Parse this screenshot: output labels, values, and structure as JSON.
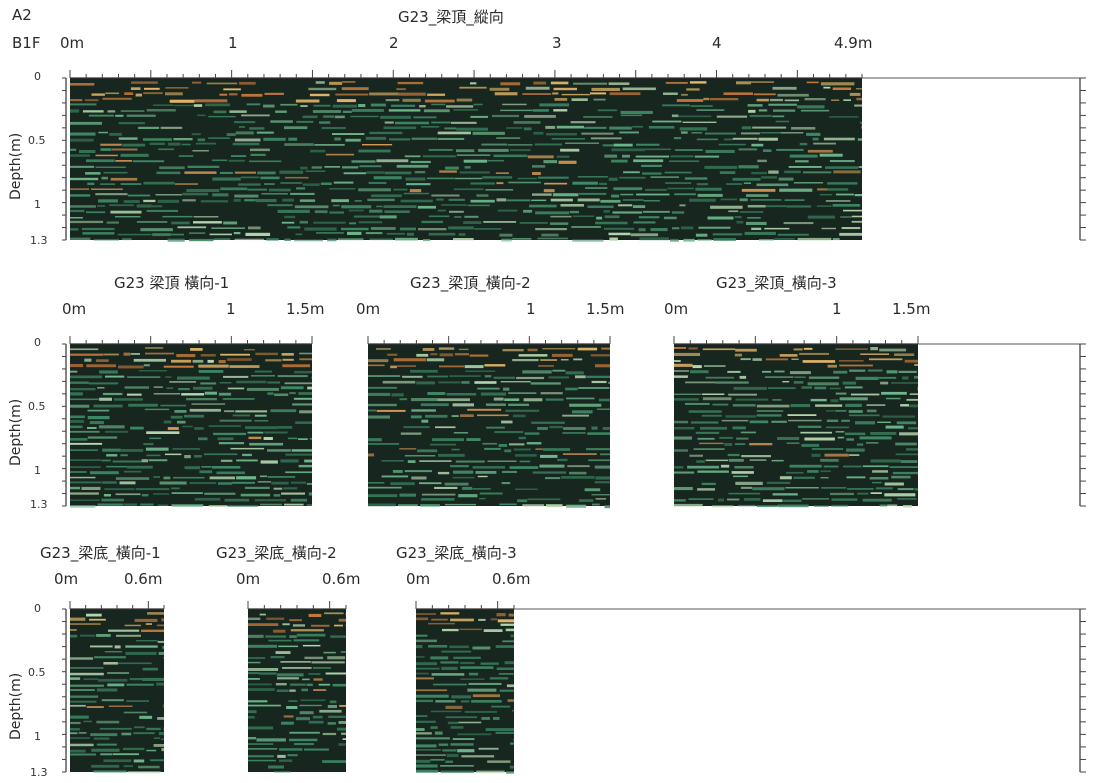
{
  "header": {
    "site_code": "A2",
    "floor": "B1F"
  },
  "chart_data": [
    {
      "type": "heatmap",
      "title": "G23_梁頂_縱向",
      "panels": [
        {
          "title": "G23_梁頂_縱向",
          "start_label": "0m",
          "end_label": "4.9m",
          "x_ticks": [
            "1",
            "2",
            "3",
            "4"
          ],
          "xlim": [
            0,
            4.9
          ]
        }
      ],
      "ylabel": "Depth(m)",
      "y_ticks": [
        "0",
        "0.5",
        "1",
        "1.3"
      ],
      "ylim": [
        0,
        1.3
      ]
    },
    {
      "type": "heatmap",
      "panels": [
        {
          "title": "G23 梁頂 橫向-1",
          "start_label": "0m",
          "end_label": "1.5m",
          "x_ticks": [
            "1"
          ],
          "xlim": [
            0,
            1.5
          ]
        },
        {
          "title": "G23_梁頂_橫向-2",
          "start_label": "0m",
          "end_label": "1.5m",
          "x_ticks": [
            "1"
          ],
          "xlim": [
            0,
            1.5
          ]
        },
        {
          "title": "G23_梁頂_橫向-3",
          "start_label": "0m",
          "end_label": "1.5m",
          "x_ticks": [
            "1"
          ],
          "xlim": [
            0,
            1.5
          ]
        }
      ],
      "ylabel": "Depth(m)",
      "y_ticks": [
        "0",
        "0.5",
        "1",
        "1.3"
      ],
      "ylim": [
        0,
        1.3
      ]
    },
    {
      "type": "heatmap",
      "panels": [
        {
          "title": "G23_梁底_橫向-1",
          "start_label": "0m",
          "end_label": "0.6m",
          "x_ticks": [],
          "xlim": [
            0,
            0.6
          ]
        },
        {
          "title": "G23_梁底_橫向-2",
          "start_label": "0m",
          "end_label": "0.6m",
          "x_ticks": [],
          "xlim": [
            0,
            0.6
          ]
        },
        {
          "title": "G23_梁底_橫向-3",
          "start_label": "0m",
          "end_label": "0.6m",
          "x_ticks": [],
          "xlim": [
            0,
            0.6
          ]
        }
      ],
      "ylabel": "Depth(m)",
      "y_ticks": [
        "0",
        "0.5",
        "1",
        "1.3"
      ],
      "ylim": [
        0,
        1.3
      ]
    }
  ]
}
